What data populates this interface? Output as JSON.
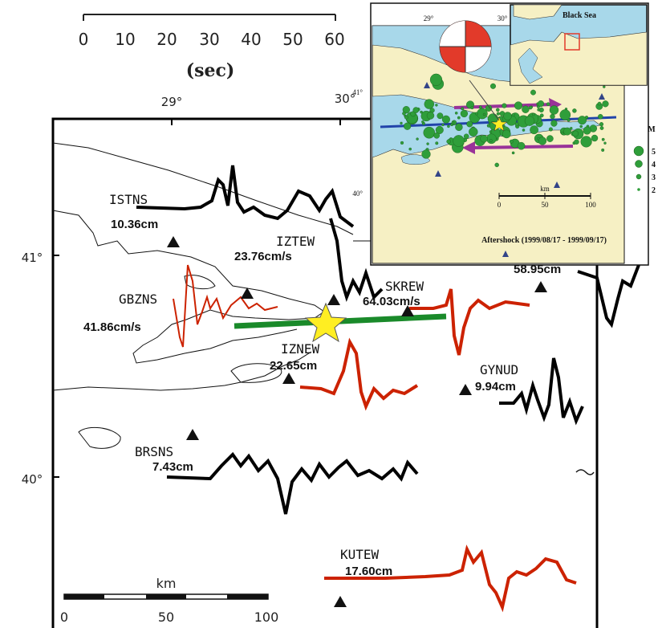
{
  "time_scale": {
    "ticks": [
      "0",
      "10",
      "20",
      "30",
      "40",
      "50",
      "60"
    ],
    "unit": "(sec)"
  },
  "map": {
    "lon_labels": [
      "29°",
      "30°"
    ],
    "lat_labels": [
      "41°",
      "40°"
    ],
    "stations": [
      {
        "name": "ISTNS",
        "amplitude": "10.36cm",
        "trace_color": "#000000"
      },
      {
        "name": "IZTEW",
        "amplitude": "23.76cm/s",
        "trace_color": "#000000"
      },
      {
        "name": "GBZNS",
        "amplitude": "41.86cm/s",
        "trace_color": "#cc2200"
      },
      {
        "name": "SKREW",
        "amplitude": "64.03cm/s",
        "trace_color": "#cc2200"
      },
      {
        "name": "IZNEW",
        "amplitude": "22.65cm",
        "trace_color": "#cc2200"
      },
      {
        "name": "GYNUD",
        "amplitude": "9.94cm",
        "trace_color": "#000000"
      },
      {
        "name": "BRSNS",
        "amplitude": "7.43cm",
        "trace_color": "#000000"
      },
      {
        "name": "KUTEW",
        "amplitude": "17.60cm",
        "trace_color": "#cc2200"
      },
      {
        "name": "",
        "amplitude": "58.95cm",
        "trace_color": "#000000"
      }
    ],
    "scale_bar": {
      "unit": "km",
      "ticks": [
        "0",
        "50",
        "100"
      ]
    },
    "fault_color": "#1a8a2a",
    "epicenter_color": "#ffee22"
  },
  "inset": {
    "lon_labels": [
      "29°",
      "30°"
    ],
    "lat_labels": [
      "41°",
      "40°"
    ],
    "region_label": "Black Sea",
    "caption": "Aftershock (1999/08/17 - 1999/09/17)",
    "scale_bar": {
      "unit": "km",
      "ticks": [
        "0",
        "50",
        "100"
      ]
    },
    "legend": {
      "title": "M",
      "items": [
        "5",
        "4",
        "3",
        "2"
      ]
    }
  }
}
